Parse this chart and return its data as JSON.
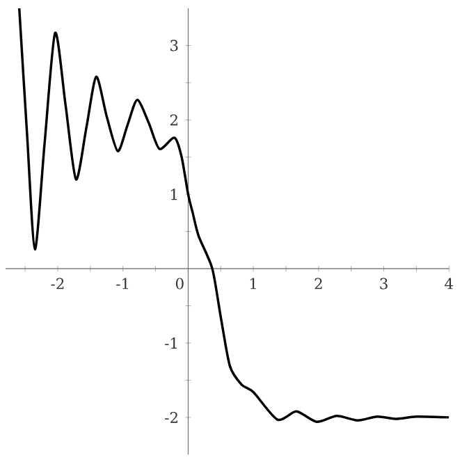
{
  "chart_data": {
    "type": "line",
    "xlim": [
      -2.8,
      4
    ],
    "ylim": [
      -2.5,
      3.5
    ],
    "xticks": [
      {
        "value": -2.5,
        "label": null
      },
      -2,
      {
        "value": -1.5,
        "label": null
      },
      -1,
      {
        "value": -0.5,
        "label": null
      },
      0,
      {
        "value": 0.5,
        "label": null
      },
      1,
      {
        "value": 1.5,
        "label": null
      },
      2,
      {
        "value": 2.5,
        "label": null
      },
      3,
      {
        "value": 3.5,
        "label": null
      },
      4
    ],
    "yticks": [
      -2,
      {
        "value": -1.5,
        "label": null
      },
      -1,
      {
        "value": -0.5,
        "label": null
      },
      {
        "value": 0.5,
        "label": null
      },
      1,
      {
        "value": 1.5,
        "label": null
      },
      2,
      {
        "value": 2.5,
        "label": null
      },
      3
    ],
    "marker": "none",
    "line_style": "solid",
    "series": [
      {
        "color": "#000000",
        "x": [
          -2.59,
          -2.47,
          -2.35,
          -2.2,
          -2.04,
          -1.88,
          -1.72,
          -1.56,
          -1.41,
          -1.25,
          -1.08,
          -0.93,
          -0.78,
          -0.6,
          -0.44,
          -0.21,
          -0.1,
          0,
          0.07,
          0.16,
          0.37,
          0.5,
          0.64,
          0.82,
          1.0,
          1.37,
          1.66,
          1.97,
          2.28,
          2.6,
          2.9,
          3.2,
          3.5,
          4
        ],
        "values": [
          3.5,
          1.8,
          0.26,
          1.7,
          3.17,
          2.2,
          1.2,
          1.9,
          2.58,
          2.05,
          1.58,
          1.93,
          2.27,
          1.95,
          1.61,
          1.76,
          1.5,
          1.0,
          0.75,
          0.44,
          0,
          -0.65,
          -1.31,
          -1.56,
          -1.66,
          -2.03,
          -1.92,
          -2.06,
          -1.98,
          -2.04,
          -1.99,
          -2.02,
          -1.99,
          -2.0
        ]
      }
    ]
  }
}
